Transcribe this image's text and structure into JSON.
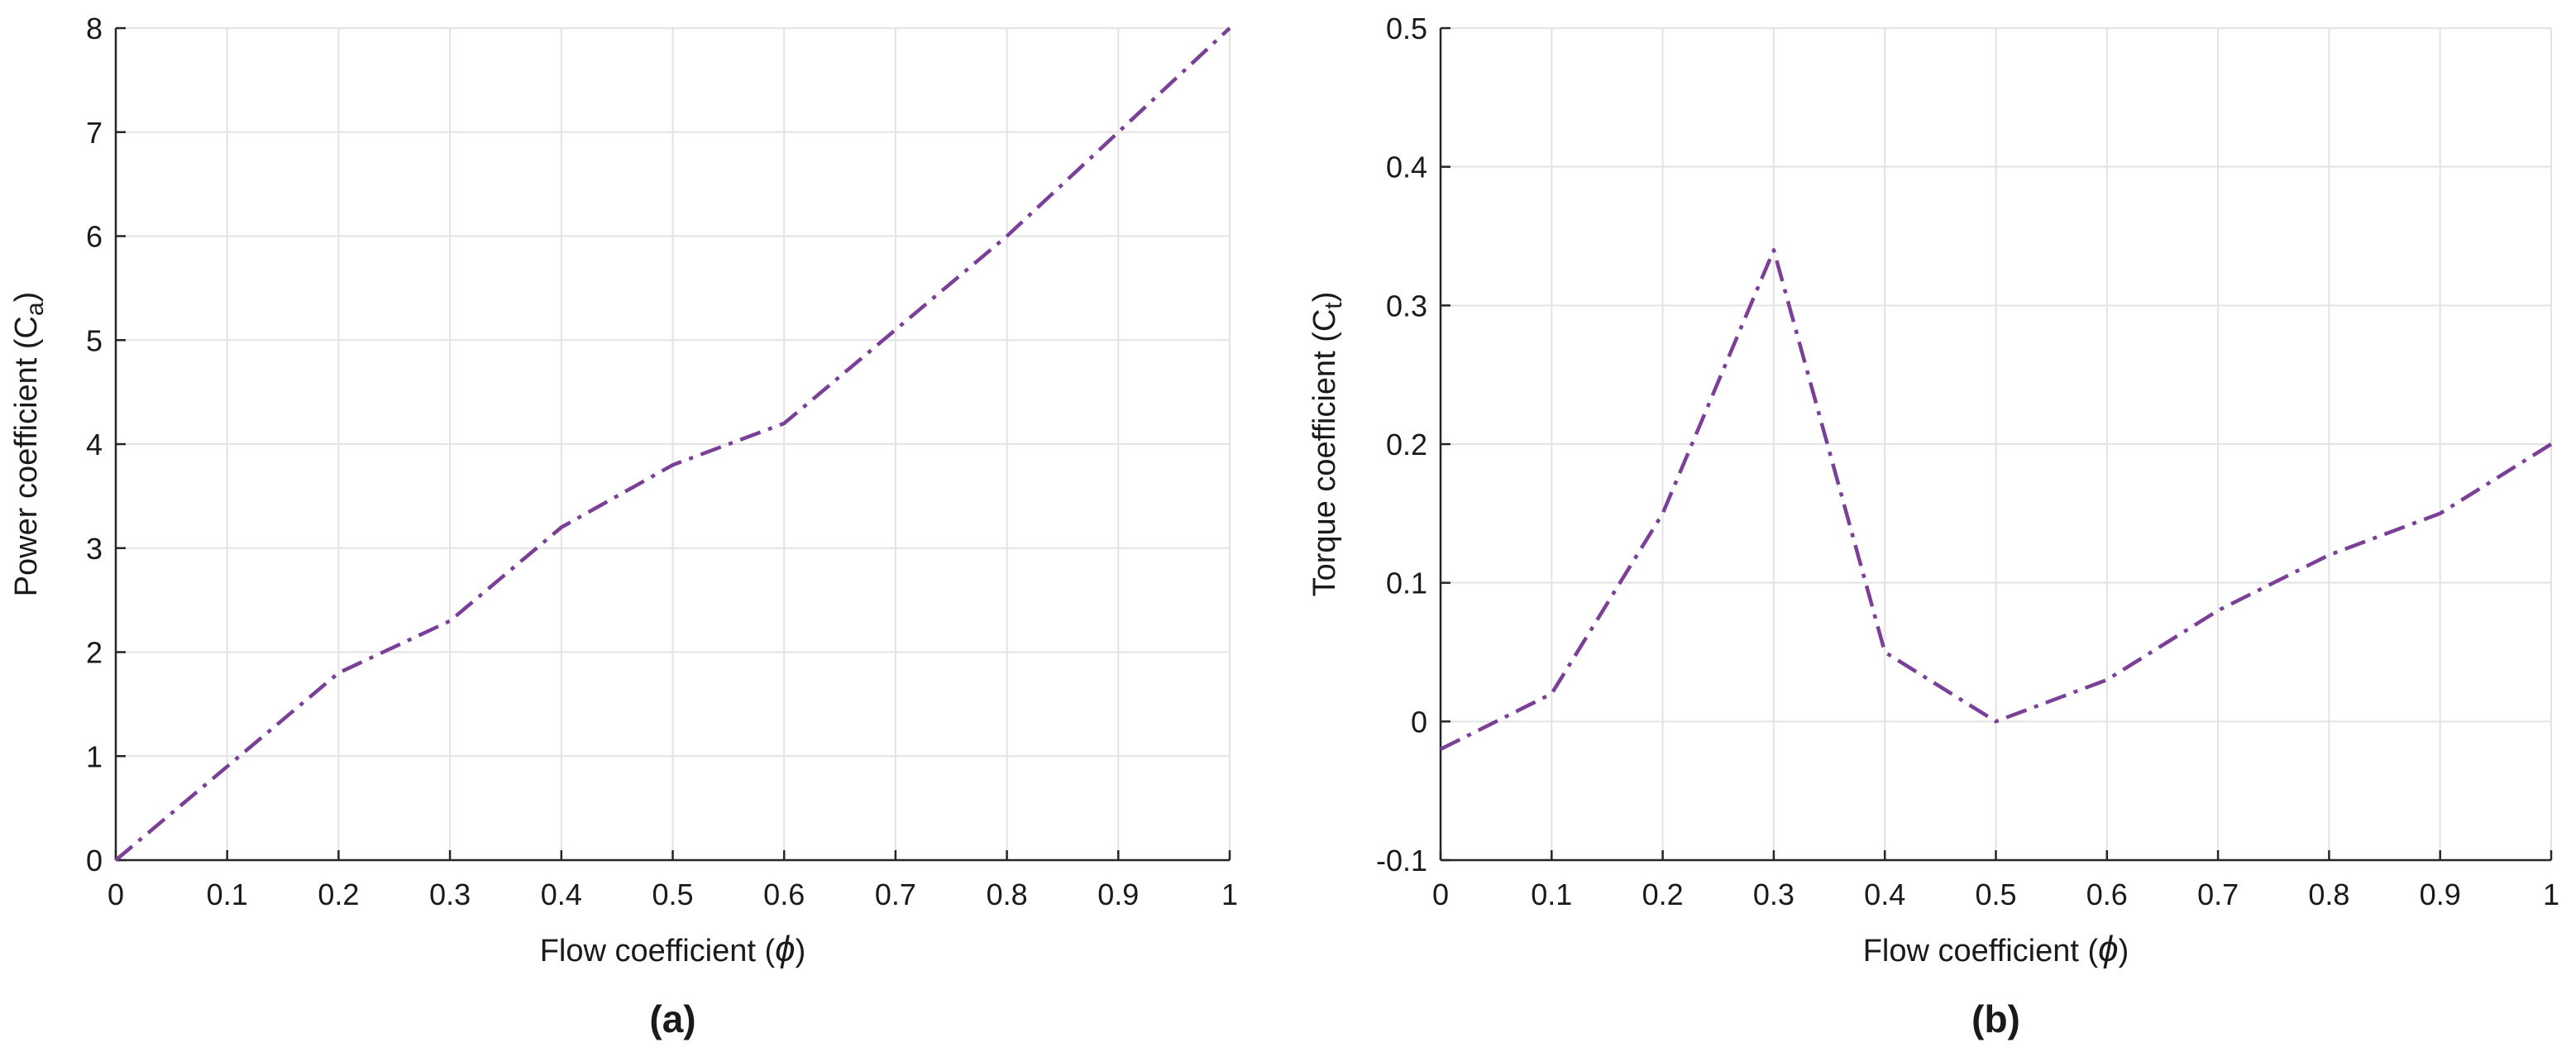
{
  "chart_data": [
    {
      "type": "line",
      "panel_label": "(a)",
      "xlabel": "Flow coefficient (",
      "xlabel_symbol": "ϕ",
      "xlabel_end": ")",
      "ylabel": "Power coefficient (C",
      "ylabel_sub": "a",
      "ylabel_end": ")",
      "xlim": [
        0,
        1
      ],
      "ylim": [
        0,
        8
      ],
      "xticks": [
        0,
        0.1,
        0.2,
        0.3,
        0.4,
        0.5,
        0.6,
        0.7,
        0.8,
        0.9,
        1
      ],
      "xtick_labels": [
        "0",
        "0.1",
        "0.2",
        "0.3",
        "0.4",
        "0.5",
        "0.6",
        "0.7",
        "0.8",
        "0.9",
        "1"
      ],
      "yticks": [
        0,
        1,
        2,
        3,
        4,
        5,
        6,
        7,
        8
      ],
      "ytick_labels": [
        "0",
        "1",
        "2",
        "3",
        "4",
        "5",
        "6",
        "7",
        "8"
      ],
      "grid": true,
      "series": [
        {
          "x": [
            0,
            0.1,
            0.2,
            0.3,
            0.4,
            0.5,
            0.6,
            0.7,
            0.8,
            0.9,
            1
          ],
          "y": [
            0,
            0.9,
            1.8,
            2.3,
            3.2,
            3.8,
            4.2,
            5.1,
            6.0,
            7.0,
            8.0
          ],
          "color": "#7b3f98",
          "linestyle": "dash-dot"
        }
      ]
    },
    {
      "type": "line",
      "panel_label": "(b)",
      "xlabel": "Flow coefficient (",
      "xlabel_symbol": "ϕ",
      "xlabel_end": ")",
      "ylabel": "Torque coefficient (C",
      "ylabel_sub": "t",
      "ylabel_end": ")",
      "xlim": [
        0,
        1
      ],
      "ylim": [
        -0.1,
        0.5
      ],
      "xticks": [
        0,
        0.1,
        0.2,
        0.3,
        0.4,
        0.5,
        0.6,
        0.7,
        0.8,
        0.9,
        1
      ],
      "xtick_labels": [
        "0",
        "0.1",
        "0.2",
        "0.3",
        "0.4",
        "0.5",
        "0.6",
        "0.7",
        "0.8",
        "0.9",
        "1"
      ],
      "yticks": [
        -0.1,
        0,
        0.1,
        0.2,
        0.3,
        0.4,
        0.5
      ],
      "ytick_labels": [
        "-0.1",
        "0",
        "0.1",
        "0.2",
        "0.3",
        "0.4",
        "0.5"
      ],
      "grid": true,
      "series": [
        {
          "x": [
            0,
            0.1,
            0.2,
            0.3,
            0.4,
            0.5,
            0.6,
            0.7,
            0.8,
            0.9,
            1
          ],
          "y": [
            -0.02,
            0.02,
            0.15,
            0.34,
            0.05,
            0.0,
            0.03,
            0.08,
            0.12,
            0.15,
            0.2
          ],
          "color": "#7b3f98",
          "linestyle": "dash-dot"
        }
      ]
    }
  ]
}
